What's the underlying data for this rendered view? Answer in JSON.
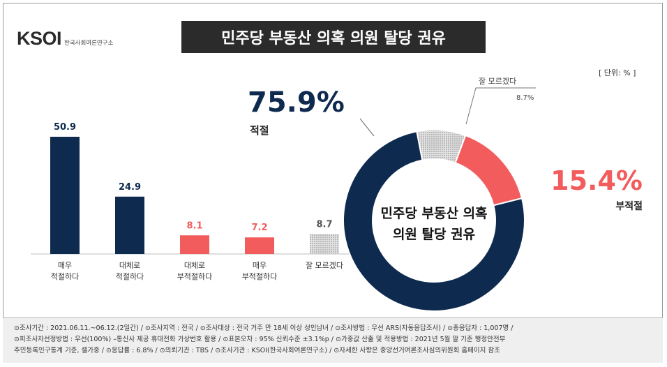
{
  "logo": {
    "brand": "KSOI",
    "subtitle": "한국사회여론연구소"
  },
  "title": "민주당 부동산 의혹 의원 탈당 권유",
  "unit": "[ 단위: % ]",
  "chart_data": [
    {
      "type": "bar",
      "categories": [
        "매우\n적절하다",
        "대체로\n적절하다",
        "대체로\n부적절하다",
        "매우\n부적절하다",
        "잘 모르겠다"
      ],
      "values": [
        50.9,
        24.9,
        8.1,
        7.2,
        8.7
      ],
      "colors": [
        "#0e2a4f",
        "#0e2a4f",
        "#f25c5c",
        "#f25c5c",
        "#a8a8a8"
      ],
      "label_colors": [
        "#0e2a4f",
        "#0e2a4f",
        "#f25c5c",
        "#f25c5c",
        "#555555"
      ],
      "patterns": [
        "solid",
        "solid",
        "solid",
        "solid",
        "hatched"
      ],
      "ylim": [
        0,
        55
      ]
    },
    {
      "type": "pie",
      "center_label": [
        "민주당 부동산 의혹",
        "의원 탈당 권유"
      ],
      "slices": [
        {
          "label": "적절",
          "value": 75.9,
          "value_text": "75.9%",
          "color": "#0e2a4f"
        },
        {
          "label": "부적절",
          "value": 15.4,
          "value_text": "15.4%",
          "color": "#f25c5c"
        },
        {
          "label": "잘 모르겠다",
          "value": 8.7,
          "value_text": "8.7%",
          "color": "#a8a8a8"
        }
      ]
    }
  ],
  "footer": {
    "line1": "⊙조사기간 : 2021.06.11.~06.12.(2일간)  / ⊙조사지역 : 전국 / ⊙조사대상 : 전국 거주 만 18세 이상 성인남녀 / ⊙조사방법 : 우선 ARS(자동응답조사) / ⊙총응답자 : 1,007명 /",
    "line2": "⊙피조사자선정방법 : 우선(100%) –통신사 제공 휴대전화 가상번호 활용 / ⊙표본오차 : 95% 신뢰수준 ±3.1%p / ⊙가중값 산출 및 적용방법 : 2021년 5월 말 기준 행정안전부",
    "line3": "주민등록인구통계 기준, 셀가중 / ⊙응답률 : 6.8% / ⊙의뢰기관 : TBS / ⊙조사기관 : KSOI(한국사회여론연구소) / ⊙자세한 사항은 중앙선거여론조사심의위원회 홈페이지 참조"
  }
}
